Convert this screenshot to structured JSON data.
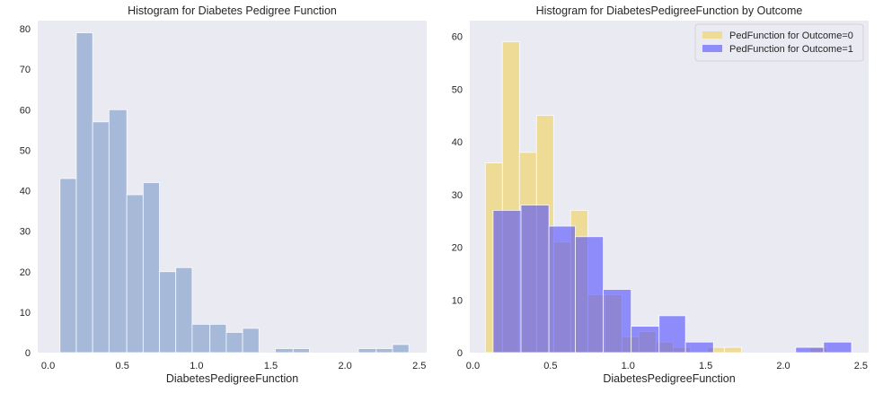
{
  "figure": {
    "background": "#ffffff",
    "axes_facecolor": "#eaeaf2",
    "grid": false
  },
  "chart_data": [
    {
      "type": "bar",
      "title": "Histogram for Diabetes Pedigree Function",
      "xlabel": "DiabetesPedigreeFunction",
      "ylabel": "",
      "xlim": [
        -0.07,
        2.55
      ],
      "ylim": [
        0,
        82
      ],
      "xticks": [
        0.0,
        0.5,
        1.0,
        1.5,
        2.0,
        2.5
      ],
      "xtick_labels": [
        "0.0",
        "0.5",
        "1.0",
        "1.5",
        "2.0",
        "2.5"
      ],
      "yticks": [
        0,
        10,
        20,
        30,
        40,
        50,
        60,
        70,
        80
      ],
      "ytick_labels": [
        "0",
        "10",
        "20",
        "30",
        "40",
        "50",
        "60",
        "70",
        "80"
      ],
      "series": [
        {
          "color": "#8ea6cf",
          "opacity": 0.72,
          "bins": [
            {
              "x0": 0.08,
              "x1": 0.19,
              "count": 43
            },
            {
              "x0": 0.19,
              "x1": 0.3,
              "count": 79
            },
            {
              "x0": 0.3,
              "x1": 0.41,
              "count": 57
            },
            {
              "x0": 0.41,
              "x1": 0.53,
              "count": 60
            },
            {
              "x0": 0.53,
              "x1": 0.64,
              "count": 39
            },
            {
              "x0": 0.64,
              "x1": 0.75,
              "count": 42
            },
            {
              "x0": 0.75,
              "x1": 0.86,
              "count": 20
            },
            {
              "x0": 0.86,
              "x1": 0.97,
              "count": 21
            },
            {
              "x0": 0.97,
              "x1": 1.09,
              "count": 7
            },
            {
              "x0": 1.09,
              "x1": 1.2,
              "count": 7
            },
            {
              "x0": 1.2,
              "x1": 1.31,
              "count": 5
            },
            {
              "x0": 1.31,
              "x1": 1.42,
              "count": 6
            },
            {
              "x0": 1.42,
              "x1": 1.53,
              "count": 0
            },
            {
              "x0": 1.53,
              "x1": 1.65,
              "count": 1
            },
            {
              "x0": 1.65,
              "x1": 1.76,
              "count": 1
            },
            {
              "x0": 1.76,
              "x1": 1.87,
              "count": 0
            },
            {
              "x0": 1.87,
              "x1": 1.98,
              "count": 0
            },
            {
              "x0": 1.98,
              "x1": 2.09,
              "count": 0
            },
            {
              "x0": 2.09,
              "x1": 2.21,
              "count": 1
            },
            {
              "x0": 2.21,
              "x1": 2.32,
              "count": 1
            },
            {
              "x0": 2.32,
              "x1": 2.43,
              "count": 2
            }
          ]
        }
      ]
    },
    {
      "type": "bar",
      "title": "Histogram for DiabetesPedigreeFunction by Outcome",
      "xlabel": "DiabetesPedigreeFunction",
      "ylabel": "",
      "xlim": [
        -0.02,
        2.55
      ],
      "ylim": [
        0,
        63
      ],
      "xticks": [
        0.0,
        0.5,
        1.0,
        1.5,
        2.0,
        2.5
      ],
      "xtick_labels": [
        "0.0",
        "0.5",
        "1.0",
        "1.5",
        "2.0",
        "2.5"
      ],
      "yticks": [
        0,
        10,
        20,
        30,
        40,
        50,
        60
      ],
      "ytick_labels": [
        "0",
        "10",
        "20",
        "30",
        "40",
        "50",
        "60"
      ],
      "legend_position": "top-right",
      "series": [
        {
          "name": "PedFunction for Outcome=0",
          "color": "#f0d264",
          "opacity": 0.65,
          "bins": [
            {
              "x0": 0.08,
              "x1": 0.19,
              "count": 36
            },
            {
              "x0": 0.19,
              "x1": 0.3,
              "count": 59
            },
            {
              "x0": 0.3,
              "x1": 0.41,
              "count": 38
            },
            {
              "x0": 0.41,
              "x1": 0.52,
              "count": 45
            },
            {
              "x0": 0.52,
              "x1": 0.63,
              "count": 21
            },
            {
              "x0": 0.63,
              "x1": 0.74,
              "count": 27
            },
            {
              "x0": 0.74,
              "x1": 0.85,
              "count": 11
            },
            {
              "x0": 0.85,
              "x1": 0.96,
              "count": 11
            },
            {
              "x0": 0.96,
              "x1": 1.07,
              "count": 3
            },
            {
              "x0": 1.07,
              "x1": 1.18,
              "count": 4
            },
            {
              "x0": 1.18,
              "x1": 1.29,
              "count": 2
            },
            {
              "x0": 1.29,
              "x1": 1.4,
              "count": 1
            },
            {
              "x0": 1.4,
              "x1": 1.51,
              "count": 0
            },
            {
              "x0": 1.51,
              "x1": 1.62,
              "count": 1
            },
            {
              "x0": 1.62,
              "x1": 1.73,
              "count": 1
            },
            {
              "x0": 2.17,
              "x1": 2.28,
              "count": 1
            }
          ]
        },
        {
          "name": "PedFunction for Outcome=1",
          "color": "#4f4cff",
          "opacity": 0.6,
          "bins": [
            {
              "x0": 0.13,
              "x1": 0.31,
              "count": 27
            },
            {
              "x0": 0.31,
              "x1": 0.49,
              "count": 28
            },
            {
              "x0": 0.49,
              "x1": 0.66,
              "count": 24
            },
            {
              "x0": 0.66,
              "x1": 0.84,
              "count": 22
            },
            {
              "x0": 0.84,
              "x1": 1.02,
              "count": 12
            },
            {
              "x0": 1.02,
              "x1": 1.2,
              "count": 5
            },
            {
              "x0": 1.2,
              "x1": 1.37,
              "count": 7
            },
            {
              "x0": 1.37,
              "x1": 1.55,
              "count": 2
            },
            {
              "x0": 1.55,
              "x1": 1.73,
              "count": 0
            },
            {
              "x0": 1.73,
              "x1": 1.91,
              "count": 0
            },
            {
              "x0": 1.91,
              "x1": 2.08,
              "count": 0
            },
            {
              "x0": 2.08,
              "x1": 2.26,
              "count": 1
            },
            {
              "x0": 2.26,
              "x1": 2.44,
              "count": 2
            }
          ]
        }
      ]
    }
  ]
}
